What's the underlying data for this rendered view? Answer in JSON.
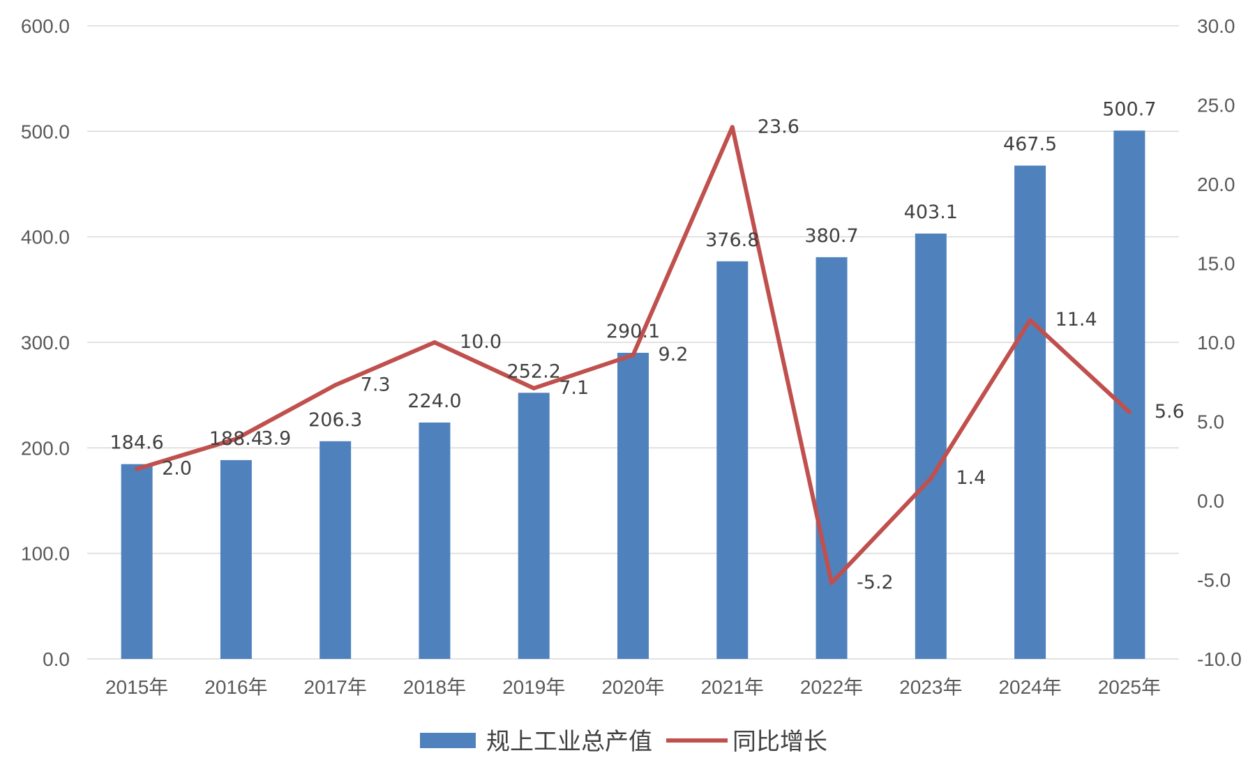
{
  "chart_data": {
    "type": "bar",
    "categories": [
      "2015年",
      "2016年",
      "2017年",
      "2018年",
      "2019年",
      "2020年",
      "2021年",
      "2022年",
      "2023年",
      "2024年",
      "2025年"
    ],
    "series": [
      {
        "name": "规上工业总产值",
        "type": "bar",
        "axis": "left",
        "color": "#4f81bd",
        "values": [
          184.6,
          188.4,
          206.3,
          224.0,
          252.2,
          290.1,
          376.8,
          380.7,
          403.1,
          467.5,
          500.7
        ]
      },
      {
        "name": "同比增长",
        "type": "line",
        "axis": "right",
        "color": "#c0504d",
        "values": [
          2.0,
          3.9,
          7.3,
          10.0,
          7.1,
          9.2,
          23.6,
          -5.2,
          1.4,
          11.4,
          5.6
        ]
      }
    ],
    "y_left": {
      "ylim": [
        0,
        600
      ],
      "ticks": [
        "0.0",
        "100.0",
        "200.0",
        "300.0",
        "400.0",
        "500.0",
        "600.0"
      ]
    },
    "y_right": {
      "ylim": [
        -10,
        30
      ],
      "ticks": [
        "-10.0",
        "-5.0",
        "0.0",
        "5.0",
        "10.0",
        "15.0",
        "20.0",
        "25.0",
        "30.0"
      ]
    },
    "grid": true,
    "legend": "bottom"
  }
}
